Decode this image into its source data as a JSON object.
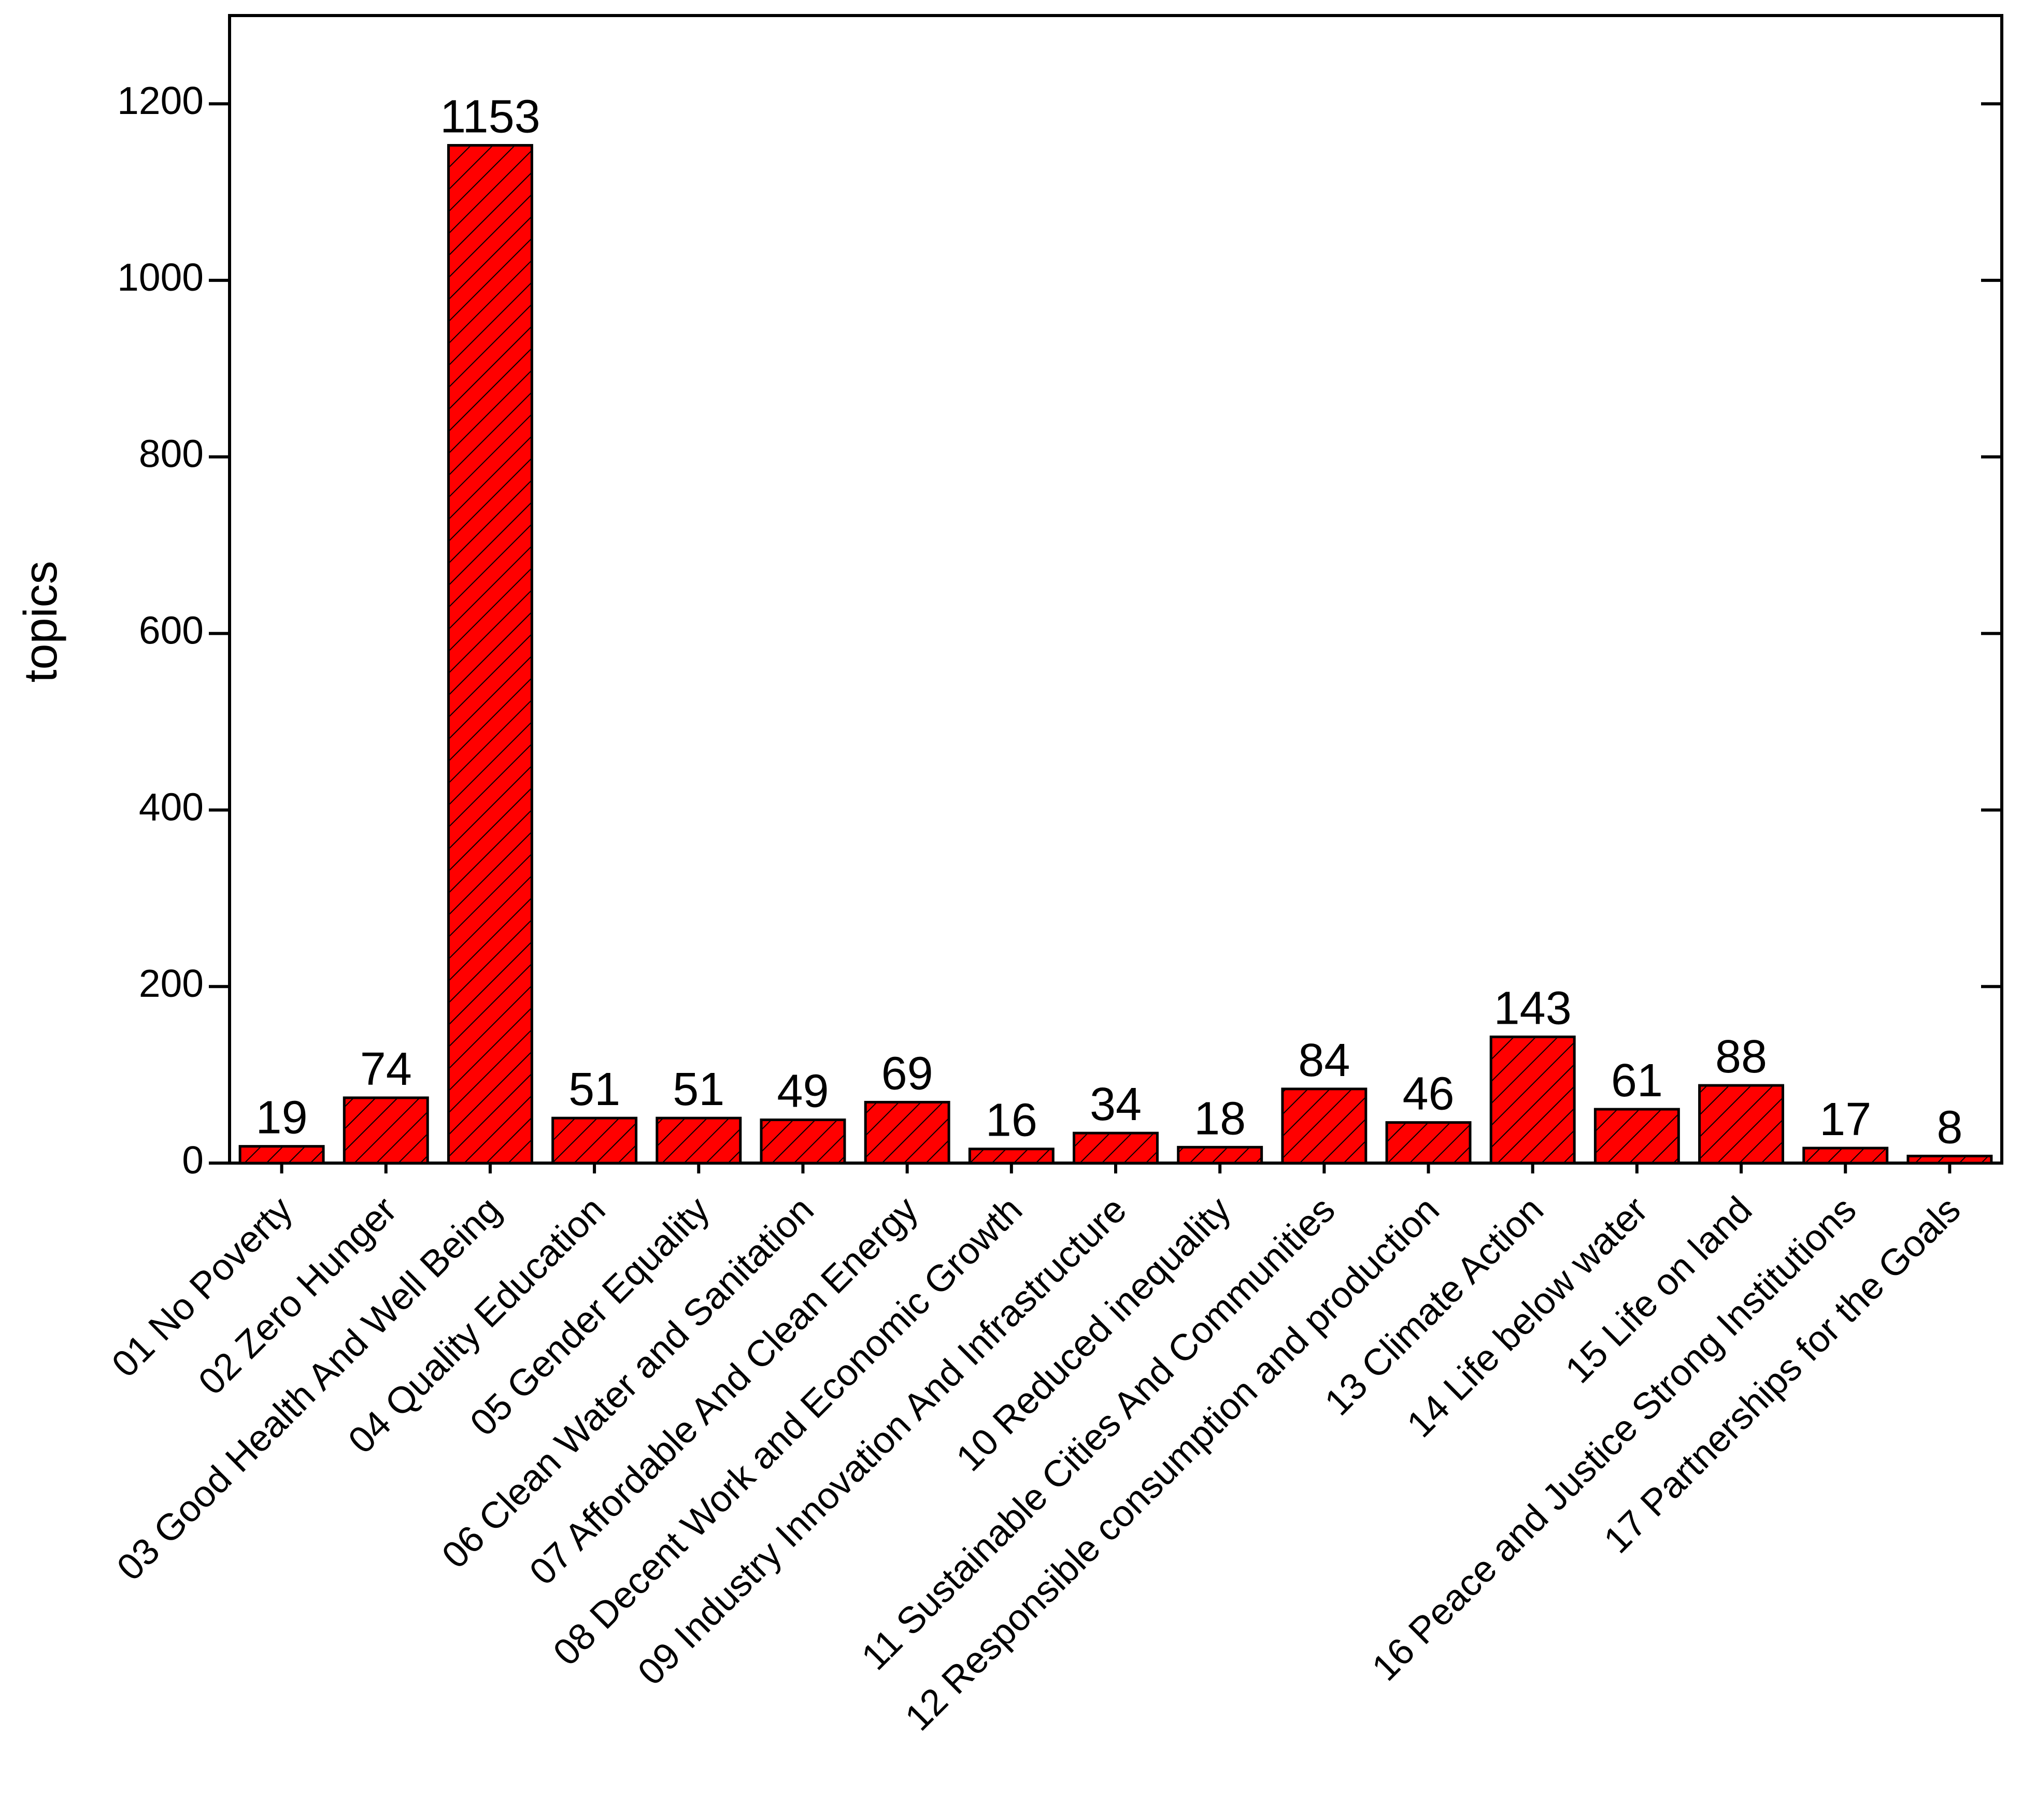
{
  "chart_data": {
    "type": "bar",
    "y_label": "topics",
    "categories": [
      "01 No Poverty",
      "02 Zero Hunger",
      "03 Good Health And Well Being",
      "04 Quality Education",
      "05 Gender Equality",
      "06 Clean Water and Sanitation",
      "07 Affordable And Clean Energy",
      "08 Decent Work and Economic Growth",
      "09 Industry Innovation And Infrastructure",
      "10 Reduced inequality",
      "11 Sustainable Cities And Communities",
      "12 Responsible consumption and production",
      "13 Climate Action",
      "14 Life below water",
      "15 Life on land",
      "16 Peace and Justice Strong Institutions",
      "17 Partnerships for the Goals"
    ],
    "values": [
      19,
      74,
      1153,
      51,
      51,
      49,
      69,
      16,
      34,
      18,
      84,
      46,
      143,
      61,
      88,
      17,
      8
    ],
    "color": "#ff0000",
    "ylim": [
      0,
      1300
    ],
    "yticks": [
      0,
      200,
      400,
      600,
      800,
      1000,
      1200
    ]
  }
}
